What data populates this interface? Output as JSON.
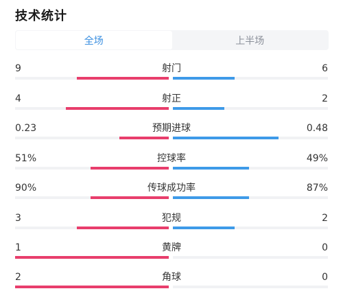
{
  "title": "技术统计",
  "tabs": [
    {
      "label": "全场",
      "active": true
    },
    {
      "label": "上半场",
      "active": false
    }
  ],
  "colors": {
    "home_bar": "#e83e6c",
    "away_bar": "#3e9ae8",
    "active_tab_text": "#3a8fe0"
  },
  "stats": [
    {
      "label": "射门",
      "home": "9",
      "away": "6",
      "home_fill": 0.6,
      "away_fill": 0.4
    },
    {
      "label": "射正",
      "home": "4",
      "away": "2",
      "home_fill": 0.67,
      "away_fill": 0.33
    },
    {
      "label": "预期进球",
      "home": "0.23",
      "away": "0.48",
      "home_fill": 0.32,
      "away_fill": 0.68
    },
    {
      "label": "控球率",
      "home": "51%",
      "away": "49%",
      "home_fill": 0.51,
      "away_fill": 0.49
    },
    {
      "label": "传球成功率",
      "home": "90%",
      "away": "87%",
      "home_fill": 0.51,
      "away_fill": 0.49
    },
    {
      "label": "犯规",
      "home": "3",
      "away": "2",
      "home_fill": 0.6,
      "away_fill": 0.4
    },
    {
      "label": "黄牌",
      "home": "1",
      "away": "0",
      "home_fill": 1.0,
      "away_fill": 0.0
    },
    {
      "label": "角球",
      "home": "2",
      "away": "0",
      "home_fill": 1.0,
      "away_fill": 0.0
    }
  ]
}
